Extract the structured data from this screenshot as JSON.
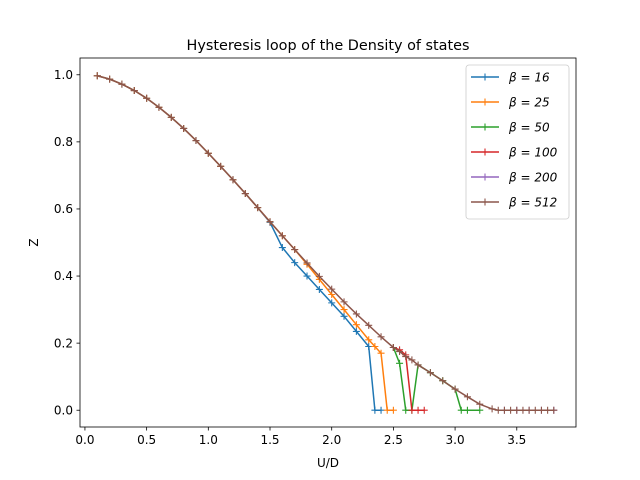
{
  "chart_data": {
    "type": "line",
    "title": "Hysteresis loop of the Density of states",
    "xlabel": "U/D",
    "ylabel": "Z",
    "xlim": [
      -0.04,
      3.98
    ],
    "ylim": [
      -0.05,
      1.05
    ],
    "x_ticks": [
      {
        "value": 0.0,
        "label": "0.0"
      },
      {
        "value": 0.5,
        "label": "0.5"
      },
      {
        "value": 1.0,
        "label": "1.0"
      },
      {
        "value": 1.5,
        "label": "1.5"
      },
      {
        "value": 2.0,
        "label": "2.0"
      },
      {
        "value": 2.5,
        "label": "2.5"
      },
      {
        "value": 3.0,
        "label": "3.0"
      },
      {
        "value": 3.5,
        "label": "3.5"
      }
    ],
    "y_ticks": [
      {
        "value": 0.0,
        "label": "0.0"
      },
      {
        "value": 0.2,
        "label": "0.2"
      },
      {
        "value": 0.4,
        "label": "0.4"
      },
      {
        "value": 0.6,
        "label": "0.6"
      },
      {
        "value": 0.8,
        "label": "0.8"
      },
      {
        "value": 1.0,
        "label": "1.0"
      }
    ],
    "grid": false,
    "legend_position": "top-right",
    "marker": "plus",
    "base_curve": {
      "x": [
        0.1,
        0.2,
        0.3,
        0.4,
        0.5,
        0.6,
        0.7,
        0.8,
        0.9,
        1.0,
        1.1,
        1.2,
        1.3,
        1.4,
        1.5,
        1.6,
        1.7,
        1.8,
        1.9,
        2.0,
        2.1,
        2.2,
        2.3,
        2.4,
        2.5,
        2.6,
        2.7,
        2.8,
        2.9,
        3.0,
        3.1,
        3.2,
        3.3,
        3.35
      ],
      "y": [
        0.997,
        0.987,
        0.972,
        0.953,
        0.93,
        0.903,
        0.873,
        0.84,
        0.804,
        0.766,
        0.727,
        0.687,
        0.646,
        0.604,
        0.562,
        0.52,
        0.479,
        0.439,
        0.399,
        0.361,
        0.323,
        0.287,
        0.253,
        0.219,
        0.187,
        0.157,
        0.128,
        0.101,
        0.076,
        0.053,
        0.033,
        0.016,
        0.004,
        0.0
      ]
    },
    "series": [
      {
        "name": "β = 16",
        "color": "#1f77b4",
        "x": [
          0.1,
          0.2,
          0.3,
          0.4,
          0.5,
          0.6,
          0.7,
          0.8,
          0.9,
          1.0,
          1.1,
          1.2,
          1.3,
          1.4,
          1.5,
          1.6,
          1.7,
          1.8,
          1.9,
          2.0,
          2.1,
          2.2,
          2.3,
          2.35,
          2.4
        ],
        "y": [
          0.997,
          0.987,
          0.972,
          0.953,
          0.93,
          0.903,
          0.873,
          0.84,
          0.804,
          0.766,
          0.727,
          0.687,
          0.646,
          0.604,
          0.56,
          0.485,
          0.44,
          0.4,
          0.36,
          0.32,
          0.28,
          0.235,
          0.19,
          0.0,
          0.0
        ]
      },
      {
        "name": "β = 25",
        "color": "#ff7f0e",
        "x": [
          0.1,
          0.2,
          0.3,
          0.4,
          0.5,
          0.6,
          0.7,
          0.8,
          0.9,
          1.0,
          1.1,
          1.2,
          1.3,
          1.4,
          1.5,
          1.6,
          1.7,
          1.8,
          1.9,
          2.0,
          2.1,
          2.2,
          2.3,
          2.35,
          2.4,
          2.45,
          2.5
        ],
        "y": [
          0.997,
          0.987,
          0.972,
          0.953,
          0.93,
          0.903,
          0.873,
          0.84,
          0.804,
          0.766,
          0.727,
          0.687,
          0.646,
          0.604,
          0.562,
          0.52,
          0.479,
          0.435,
          0.39,
          0.345,
          0.3,
          0.255,
          0.21,
          0.19,
          0.17,
          0.0,
          0.0
        ]
      },
      {
        "name": "β = 50",
        "color": "#2ca02c",
        "x": [
          2.5,
          2.55,
          2.6,
          2.65,
          2.7,
          2.8,
          2.9,
          3.0,
          3.05,
          3.1,
          3.2
        ],
        "y": [
          0.187,
          0.14,
          0.0,
          0.0,
          0.135,
          0.112,
          0.088,
          0.063,
          0.0,
          0.0,
          0.0
        ]
      },
      {
        "name": "β = 100",
        "color": "#d62728",
        "x": [
          2.5,
          2.55,
          2.6,
          2.65,
          2.7,
          2.75
        ],
        "y": [
          0.187,
          0.18,
          0.165,
          0.0,
          0.0,
          0.0
        ]
      },
      {
        "name": "β = 200",
        "color": "#9467bd",
        "x": [
          3.4,
          3.5,
          3.6,
          3.7,
          3.8
        ],
        "y": [
          0.0,
          0.0,
          0.0,
          0.0,
          0.0
        ]
      },
      {
        "name": "β = 512",
        "color": "#8c564b",
        "x": [
          0.1,
          0.2,
          0.3,
          0.4,
          0.5,
          0.6,
          0.7,
          0.8,
          0.9,
          1.0,
          1.1,
          1.2,
          1.3,
          1.4,
          1.5,
          1.6,
          1.7,
          1.8,
          1.9,
          2.0,
          2.1,
          2.2,
          2.3,
          2.4,
          2.5,
          2.55,
          2.6,
          2.65,
          2.7,
          2.8,
          2.9,
          3.0,
          3.1,
          3.2,
          3.3,
          3.35,
          3.4,
          3.45,
          3.5,
          3.55,
          3.6,
          3.65,
          3.7,
          3.75,
          3.8
        ],
        "y": [
          0.997,
          0.987,
          0.972,
          0.953,
          0.93,
          0.903,
          0.873,
          0.84,
          0.804,
          0.766,
          0.727,
          0.687,
          0.646,
          0.604,
          0.562,
          0.52,
          0.479,
          0.439,
          0.399,
          0.361,
          0.323,
          0.287,
          0.253,
          0.219,
          0.187,
          0.175,
          0.16,
          0.15,
          0.135,
          0.112,
          0.088,
          0.063,
          0.04,
          0.018,
          0.004,
          0.0,
          0.0,
          0.0,
          0.0,
          0.0,
          0.0,
          0.0,
          0.0,
          0.0,
          0.0
        ]
      }
    ]
  }
}
